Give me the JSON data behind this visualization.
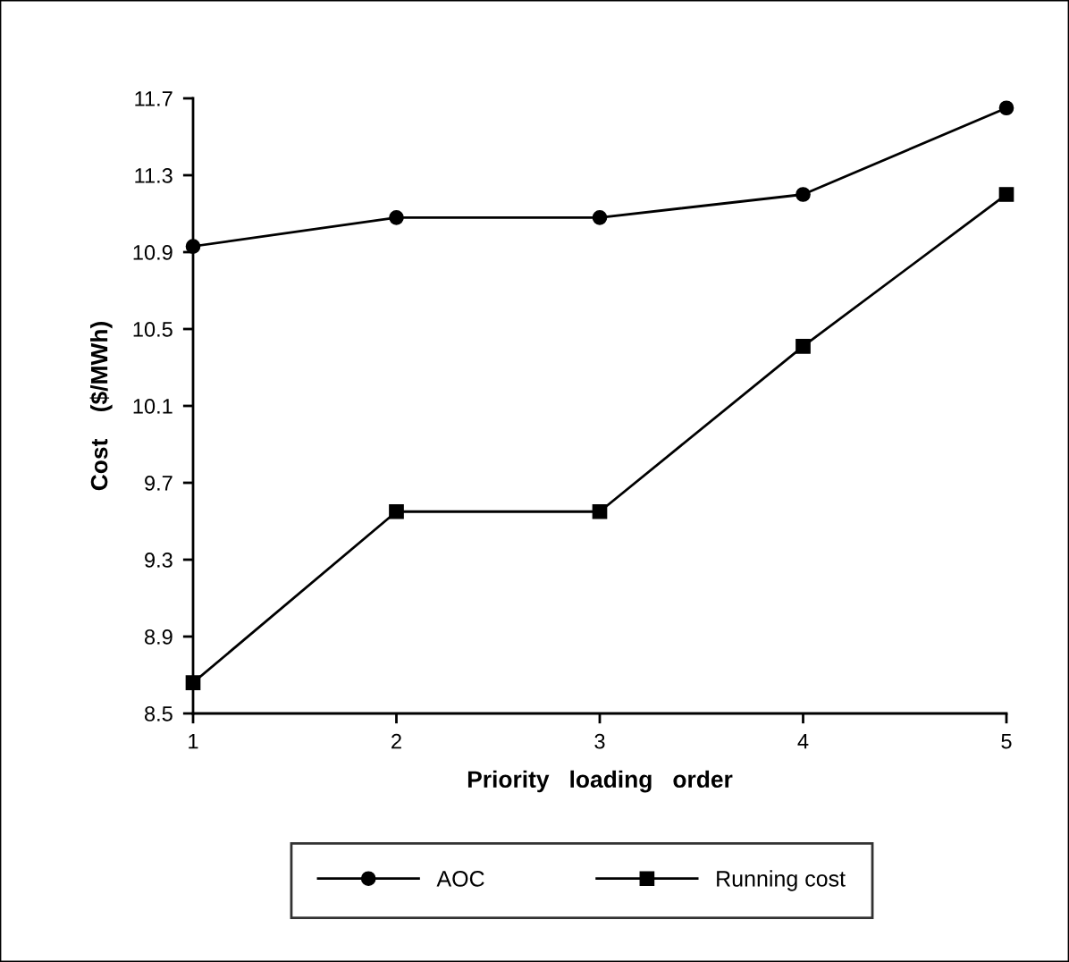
{
  "chart_data": {
    "type": "line",
    "xlabel": "Priority   loading   order",
    "ylabel": "Cost    ($/MWh)",
    "x": [
      1,
      2,
      3,
      4,
      5
    ],
    "xlim": [
      1,
      5
    ],
    "xticks": [
      1,
      2,
      3,
      4,
      5
    ],
    "ylim": [
      8.5,
      11.7
    ],
    "yticks": [
      8.5,
      8.9,
      9.3,
      9.7,
      10.1,
      10.5,
      10.9,
      11.3,
      11.7
    ],
    "series": [
      {
        "name": "AOC",
        "color": "#000000",
        "marker": "circle",
        "values": [
          10.93,
          11.08,
          11.08,
          11.2,
          11.65
        ]
      },
      {
        "name": "Running cost",
        "color": "#000000",
        "marker": "square",
        "values": [
          8.66,
          9.55,
          9.55,
          10.41,
          11.2
        ]
      }
    ],
    "legend": "bottom",
    "grid": false,
    "line_style": "solid"
  }
}
